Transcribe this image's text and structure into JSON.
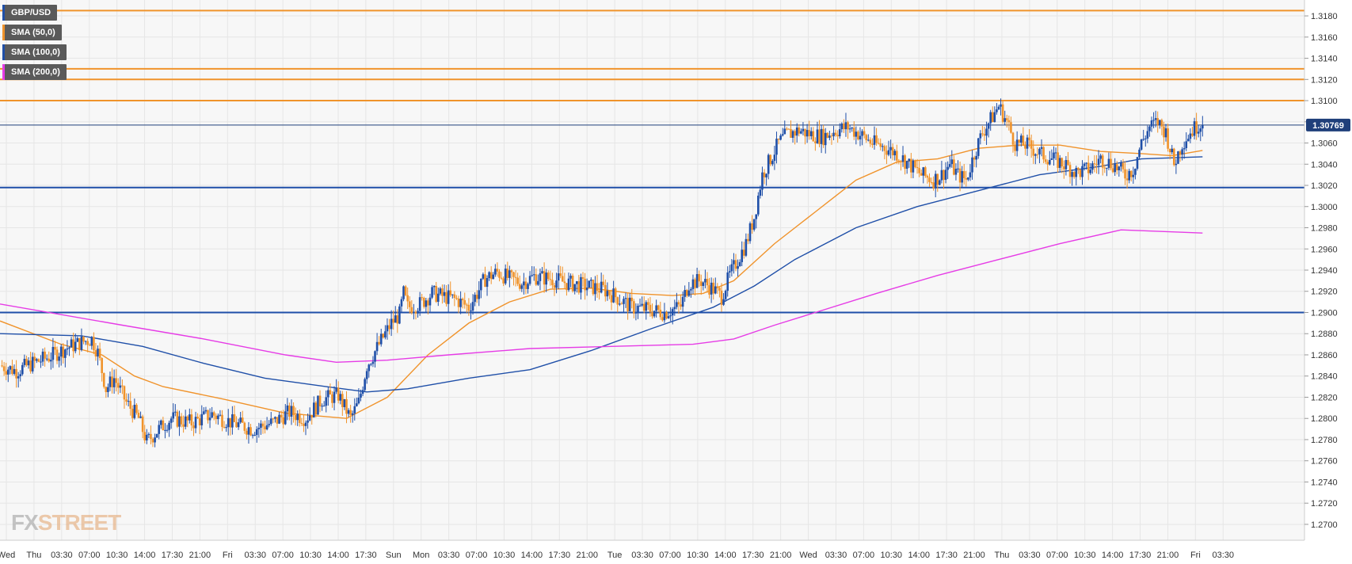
{
  "legend": [
    {
      "label": "GBP/USD",
      "color": "#1f4fa8"
    },
    {
      "label": "SMA (50,0)",
      "color": "#f0932b"
    },
    {
      "label": "SMA (100,0)",
      "color": "#1f4fa8"
    },
    {
      "label": "SMA (200,0)",
      "color": "#e63ce6"
    }
  ],
  "watermark": {
    "fx": "FX",
    "street": "STREET"
  },
  "price_tag": "1.30769",
  "colors": {
    "bull": "#1f4fa8",
    "bear": "#f0932b",
    "sma50": "#f0932b",
    "sma100": "#1f4fa8",
    "sma200": "#e63ce6",
    "resistance": "#f0932b",
    "support": "#1f4fa8",
    "grid": "#e6e6e6"
  },
  "chart_data": {
    "type": "candlestick",
    "symbol": "GBP/USD",
    "y_ticks": [
      "1.3180",
      "1.3160",
      "1.3140",
      "1.3120",
      "1.3100",
      "1.3080",
      "1.3060",
      "1.3040",
      "1.3020",
      "1.3000",
      "1.2980",
      "1.2960",
      "1.2940",
      "1.2920",
      "1.2900",
      "1.2880",
      "1.2860",
      "1.2840",
      "1.2820",
      "1.2800",
      "1.2780",
      "1.2760",
      "1.2740",
      "1.2720",
      "1.2700"
    ],
    "x_ticks": [
      "Wed",
      "Thu",
      "03:30",
      "07:00",
      "10:30",
      "14:00",
      "17:30",
      "21:00",
      "Fri",
      "03:30",
      "07:00",
      "10:30",
      "14:00",
      "17:30",
      "Sun",
      "Mon",
      "03:30",
      "07:00",
      "10:30",
      "14:00",
      "17:30",
      "21:00",
      "Tue",
      "03:30",
      "07:00",
      "10:30",
      "14:00",
      "17:30",
      "21:00",
      "Wed",
      "03:30",
      "07:00",
      "10:30",
      "14:00",
      "17:30",
      "21:00",
      "Thu",
      "03:30",
      "07:00",
      "10:30",
      "14:00",
      "17:30",
      "21:00",
      "Fri",
      "03:30"
    ],
    "ylim": [
      1.2685,
      1.3195
    ],
    "last_price": 1.30769,
    "horizontal_levels": [
      {
        "value": 1.3185,
        "kind": "resistance"
      },
      {
        "value": 1.313,
        "kind": "resistance"
      },
      {
        "value": 1.312,
        "kind": "resistance"
      },
      {
        "value": 1.31,
        "kind": "resistance"
      },
      {
        "value": 1.3018,
        "kind": "support"
      },
      {
        "value": 1.29,
        "kind": "support"
      }
    ],
    "price_path": [
      [
        0,
        1.285
      ],
      [
        8,
        1.2845
      ],
      [
        16,
        1.2852
      ],
      [
        24,
        1.2858
      ],
      [
        32,
        1.2866
      ],
      [
        40,
        1.2872
      ],
      [
        45,
        1.2875
      ],
      [
        48,
        1.2862
      ],
      [
        52,
        1.2828
      ],
      [
        56,
        1.2838
      ],
      [
        62,
        1.2815
      ],
      [
        68,
        1.28
      ],
      [
        72,
        1.2778
      ],
      [
        78,
        1.279
      ],
      [
        84,
        1.28
      ],
      [
        94,
        1.2796
      ],
      [
        104,
        1.2804
      ],
      [
        114,
        1.2796
      ],
      [
        124,
        1.279
      ],
      [
        134,
        1.2796
      ],
      [
        142,
        1.2806
      ],
      [
        150,
        1.28
      ],
      [
        158,
        1.2818
      ],
      [
        166,
        1.2822
      ],
      [
        172,
        1.28
      ],
      [
        176,
        1.2815
      ],
      [
        180,
        1.285
      ],
      [
        186,
        1.287
      ],
      [
        192,
        1.289
      ],
      [
        196,
        1.2898
      ],
      [
        198,
        1.2918
      ],
      [
        200,
        1.2905
      ],
      [
        206,
        1.2908
      ],
      [
        212,
        1.2918
      ],
      [
        218,
        1.2915
      ],
      [
        224,
        1.2912
      ],
      [
        230,
        1.2905
      ],
      [
        234,
        1.2918
      ],
      [
        238,
        1.2932
      ],
      [
        244,
        1.2938
      ],
      [
        250,
        1.2932
      ],
      [
        256,
        1.2928
      ],
      [
        262,
        1.2934
      ],
      [
        270,
        1.2932
      ],
      [
        278,
        1.2928
      ],
      [
        284,
        1.2926
      ],
      [
        290,
        1.2924
      ],
      [
        296,
        1.2922
      ],
      [
        302,
        1.2915
      ],
      [
        310,
        1.2905
      ],
      [
        318,
        1.2903
      ],
      [
        326,
        1.29
      ],
      [
        334,
        1.2906
      ],
      [
        338,
        1.2928
      ],
      [
        344,
        1.293
      ],
      [
        350,
        1.2922
      ],
      [
        354,
        1.2915
      ],
      [
        358,
        1.2935
      ],
      [
        362,
        1.295
      ],
      [
        366,
        1.2965
      ],
      [
        370,
        1.299
      ],
      [
        374,
        1.303
      ],
      [
        378,
        1.3045
      ],
      [
        382,
        1.306
      ],
      [
        386,
        1.3068
      ],
      [
        392,
        1.3072
      ],
      [
        398,
        1.3068
      ],
      [
        404,
        1.3066
      ],
      [
        410,
        1.3072
      ],
      [
        416,
        1.3075
      ],
      [
        422,
        1.3068
      ],
      [
        428,
        1.306
      ],
      [
        434,
        1.3056
      ],
      [
        440,
        1.305
      ],
      [
        446,
        1.304
      ],
      [
        452,
        1.303
      ],
      [
        458,
        1.3025
      ],
      [
        462,
        1.303
      ],
      [
        466,
        1.304
      ],
      [
        470,
        1.303
      ],
      [
        474,
        1.3025
      ],
      [
        478,
        1.305
      ],
      [
        482,
        1.307
      ],
      [
        486,
        1.3082
      ],
      [
        490,
        1.3095
      ],
      [
        494,
        1.308
      ],
      [
        498,
        1.306
      ],
      [
        504,
        1.3058
      ],
      [
        510,
        1.305
      ],
      [
        516,
        1.3045
      ],
      [
        522,
        1.304
      ],
      [
        528,
        1.3032
      ],
      [
        534,
        1.3035
      ],
      [
        540,
        1.3045
      ],
      [
        546,
        1.304
      ],
      [
        552,
        1.303
      ],
      [
        556,
        1.3035
      ],
      [
        560,
        1.306
      ],
      [
        564,
        1.3075
      ],
      [
        568,
        1.308
      ],
      [
        572,
        1.307
      ],
      [
        576,
        1.304
      ],
      [
        580,
        1.306
      ],
      [
        584,
        1.307
      ],
      [
        588,
        1.3078
      ],
      [
        590,
        1.3077
      ]
    ],
    "series": [
      {
        "name": "SMA (50,0)",
        "points": [
          [
            0,
            1.2892
          ],
          [
            30,
            1.287
          ],
          [
            50,
            1.286
          ],
          [
            66,
            1.284
          ],
          [
            80,
            1.283
          ],
          [
            110,
            1.2818
          ],
          [
            140,
            1.2805
          ],
          [
            170,
            1.28
          ],
          [
            190,
            1.282
          ],
          [
            210,
            1.286
          ],
          [
            230,
            1.289
          ],
          [
            250,
            1.291
          ],
          [
            270,
            1.2922
          ],
          [
            290,
            1.2923
          ],
          [
            310,
            1.2918
          ],
          [
            330,
            1.2916
          ],
          [
            345,
            1.2918
          ],
          [
            360,
            1.293
          ],
          [
            380,
            1.2965
          ],
          [
            400,
            1.2995
          ],
          [
            420,
            1.3025
          ],
          [
            440,
            1.3042
          ],
          [
            460,
            1.3045
          ],
          [
            480,
            1.3055
          ],
          [
            500,
            1.3058
          ],
          [
            520,
            1.3058
          ],
          [
            540,
            1.3052
          ],
          [
            560,
            1.305
          ],
          [
            575,
            1.3048
          ],
          [
            590,
            1.3053
          ]
        ]
      },
      {
        "name": "SMA (100,0)",
        "points": [
          [
            0,
            1.288
          ],
          [
            40,
            1.2878
          ],
          [
            70,
            1.2868
          ],
          [
            100,
            1.2852
          ],
          [
            130,
            1.2838
          ],
          [
            160,
            1.283
          ],
          [
            180,
            1.2825
          ],
          [
            200,
            1.2828
          ],
          [
            230,
            1.2838
          ],
          [
            260,
            1.2846
          ],
          [
            290,
            1.2864
          ],
          [
            320,
            1.2885
          ],
          [
            350,
            1.2905
          ],
          [
            370,
            1.2925
          ],
          [
            390,
            1.295
          ],
          [
            420,
            1.298
          ],
          [
            450,
            1.3
          ],
          [
            480,
            1.3015
          ],
          [
            510,
            1.303
          ],
          [
            540,
            1.3038
          ],
          [
            560,
            1.3045
          ],
          [
            590,
            1.3047
          ]
        ]
      },
      {
        "name": "SMA (200,0)",
        "points": [
          [
            0,
            1.2908
          ],
          [
            60,
            1.2888
          ],
          [
            100,
            1.2875
          ],
          [
            140,
            1.286
          ],
          [
            165,
            1.2853
          ],
          [
            190,
            1.2855
          ],
          [
            220,
            1.286
          ],
          [
            260,
            1.2866
          ],
          [
            300,
            1.2868
          ],
          [
            340,
            1.287
          ],
          [
            360,
            1.2875
          ],
          [
            380,
            1.2888
          ],
          [
            400,
            1.29
          ],
          [
            430,
            1.2918
          ],
          [
            460,
            1.2935
          ],
          [
            490,
            1.295
          ],
          [
            520,
            1.2965
          ],
          [
            550,
            1.2978
          ],
          [
            590,
            1.2975
          ]
        ]
      }
    ]
  }
}
